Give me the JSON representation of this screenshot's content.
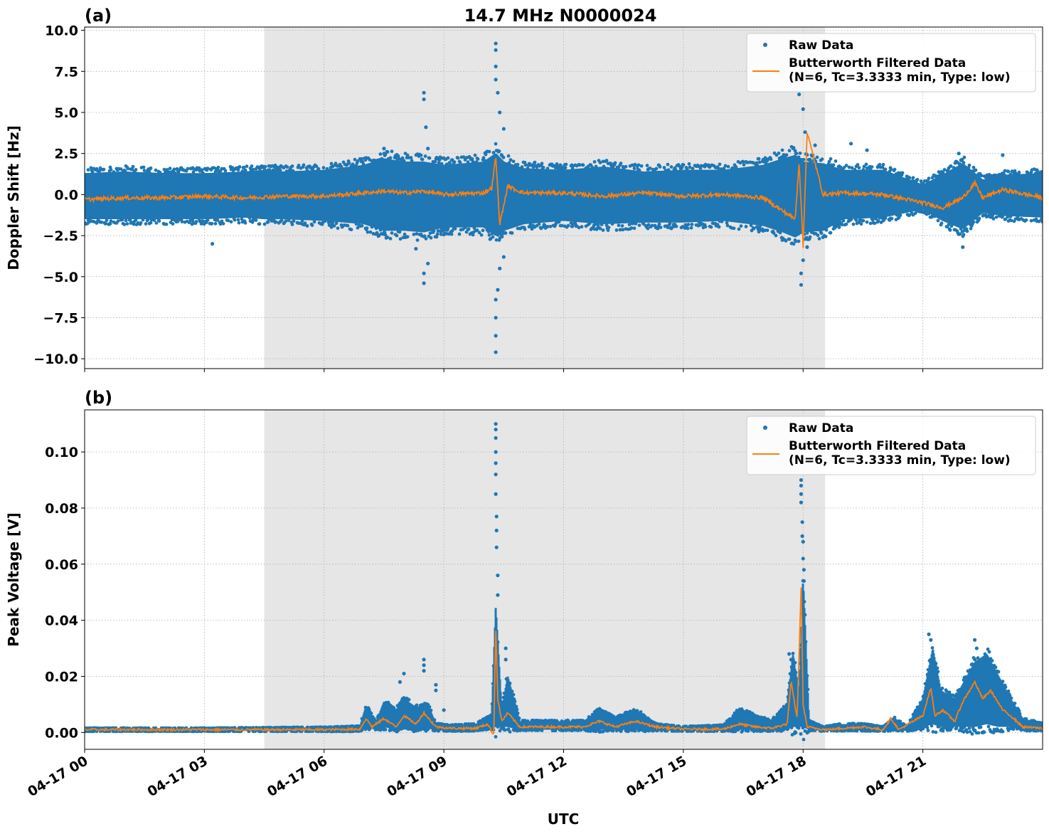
{
  "figure": {
    "title": "14.7 MHz N0000024",
    "xlabel": "UTC"
  },
  "colors": {
    "raw": "#1f77b4",
    "filtered": "#ff7f0e",
    "shade": "#e6e6e6",
    "grid": "#b0b0b0"
  },
  "chart_data": [
    {
      "type": "scatter",
      "panel_label": "(a)",
      "ylabel": "Doppler Shift [Hz]",
      "x_unit": "hours UTC on 04-17",
      "xlim": [
        0,
        24
      ],
      "ylim": [
        -10.6,
        10.2
      ],
      "yticks": [
        10.0,
        7.5,
        5.0,
        2.5,
        0.0,
        -2.5,
        -5.0,
        -7.5,
        -10.0
      ],
      "ytick_labels": [
        "10.0",
        "7.5",
        "5.0",
        "2.5",
        "0.0",
        "−2.5",
        "−5.0",
        "−7.5",
        "−10.0"
      ],
      "shaded_interval": [
        4.5,
        18.55
      ],
      "grid": true,
      "legend_position": "top-right",
      "series": [
        {
          "name": "Raw Data",
          "style": "points",
          "x": [
            0,
            1,
            2,
            3,
            4,
            4.5,
            5,
            6,
            7,
            7.5,
            8,
            8.5,
            9,
            10,
            10.3,
            10.5,
            11,
            12,
            13,
            14,
            15,
            16,
            17,
            17.5,
            17.8,
            18,
            18.5,
            19,
            20,
            21,
            21.5,
            22,
            22.5,
            23,
            24
          ],
          "y_upper": [
            1.3,
            1.4,
            1.3,
            1.3,
            1.4,
            1.5,
            1.4,
            1.5,
            1.8,
            2.2,
            2.0,
            2.0,
            1.8,
            2.0,
            2.5,
            2.0,
            1.6,
            1.5,
            1.7,
            1.4,
            1.5,
            1.5,
            1.8,
            2.2,
            2.4,
            2.0,
            1.9,
            1.5,
            1.5,
            0.6,
            1.2,
            1.9,
            0.9,
            1.2,
            1.3
          ],
          "y_lower": [
            -1.5,
            -1.5,
            -1.5,
            -1.5,
            -1.4,
            -1.5,
            -1.5,
            -1.6,
            -1.8,
            -2.2,
            -2.2,
            -2.3,
            -2.0,
            -2.0,
            -2.5,
            -2.2,
            -1.8,
            -1.6,
            -1.8,
            -1.7,
            -1.7,
            -1.6,
            -1.9,
            -2.3,
            -2.6,
            -2.3,
            -2.2,
            -1.5,
            -1.4,
            -0.9,
            -1.6,
            -2.1,
            -1.1,
            -1.3,
            -1.4
          ],
          "outliers_x": [
            3.2,
            7.5,
            8.5,
            8.5,
            8.5,
            8.5,
            8.55,
            8.6,
            8.6,
            8.3,
            10.3,
            10.3,
            10.3,
            10.3,
            10.3,
            10.3,
            10.3,
            10.3,
            10.35,
            10.35,
            10.4,
            10.4,
            10.5,
            10.5,
            17.9,
            17.9,
            17.95,
            17.95,
            18.0,
            18.0,
            18.05,
            18.1,
            18.3,
            19.2,
            19.6,
            21.9,
            22.0,
            23.0
          ],
          "outliers_y": [
            -3.0,
            2.8,
            6.2,
            5.8,
            -5.4,
            -4.8,
            4.1,
            2.8,
            -4.2,
            -3.3,
            9.2,
            8.8,
            7.8,
            7.0,
            -9.6,
            -8.6,
            -7.5,
            -6.4,
            6.2,
            -5.8,
            5.0,
            -4.5,
            4.0,
            -3.8,
            7.0,
            6.1,
            -5.5,
            -4.8,
            5.2,
            -4.0,
            3.8,
            -3.2,
            3.0,
            3.1,
            2.7,
            2.5,
            -3.2,
            2.4
          ]
        },
        {
          "name": "Butterworth Filtered Data\n(N=6, Tc=3.3333 min, Type: low)",
          "style": "line",
          "x": [
            0,
            1,
            2,
            3,
            4,
            5,
            6,
            7,
            7.5,
            8,
            8.5,
            9,
            10,
            10.2,
            10.3,
            10.4,
            10.6,
            11,
            12,
            13,
            14,
            15,
            16,
            17,
            17.8,
            17.9,
            18.0,
            18.1,
            18.5,
            19,
            20,
            21,
            21.5,
            22,
            22.3,
            22.5,
            23,
            24
          ],
          "y": [
            -0.3,
            -0.2,
            -0.2,
            -0.1,
            -0.2,
            -0.1,
            -0.1,
            0.1,
            0.2,
            0.1,
            0.2,
            0.0,
            0.1,
            0.4,
            2.3,
            -1.8,
            0.5,
            0.1,
            0.1,
            -0.1,
            0.1,
            -0.1,
            0.0,
            -0.2,
            -1.5,
            2.0,
            -3.2,
            3.8,
            0.0,
            0.1,
            0.0,
            -0.5,
            -0.8,
            -0.2,
            0.7,
            -0.2,
            0.3,
            -0.2
          ]
        }
      ]
    },
    {
      "type": "scatter",
      "panel_label": "(b)",
      "ylabel": "Peak Voltage [V]",
      "x_unit": "hours UTC on 04-17",
      "xlim": [
        0,
        24
      ],
      "ylim": [
        -0.006,
        0.115
      ],
      "yticks": [
        0.1,
        0.08,
        0.06,
        0.04,
        0.02,
        0.0
      ],
      "ytick_labels": [
        "0.10",
        "0.08",
        "0.06",
        "0.04",
        "0.02",
        "0.00"
      ],
      "xticks": [
        0,
        3,
        6,
        9,
        12,
        15,
        18,
        21
      ],
      "xtick_labels": [
        "04-17 00",
        "04-17 03",
        "04-17 06",
        "04-17 09",
        "04-17 12",
        "04-17 15",
        "04-17 18",
        "04-17 21"
      ],
      "shaded_interval": [
        4.5,
        18.55
      ],
      "grid": true,
      "legend_position": "top-right",
      "series": [
        {
          "name": "Raw Data",
          "style": "points",
          "x": [
            0,
            3,
            6,
            6.9,
            7.05,
            7.3,
            7.5,
            7.8,
            8.0,
            8.3,
            8.6,
            8.8,
            9.2,
            9.8,
            10.2,
            10.3,
            10.45,
            10.6,
            10.9,
            11.5,
            12.5,
            12.9,
            13.3,
            13.8,
            14.3,
            15,
            16,
            16.4,
            16.8,
            17.2,
            17.6,
            17.75,
            17.9,
            18.0,
            18.15,
            18.5,
            19.0,
            19.5,
            20.0,
            20.3,
            20.6,
            21.0,
            21.25,
            21.45,
            21.8,
            22.3,
            22.6,
            22.9,
            23.2,
            23.5,
            24
          ],
          "y_upper": [
            0.0015,
            0.0015,
            0.0018,
            0.0022,
            0.0095,
            0.0035,
            0.011,
            0.008,
            0.012,
            0.009,
            0.01,
            0.003,
            0.0025,
            0.003,
            0.006,
            0.045,
            0.008,
            0.02,
            0.004,
            0.004,
            0.004,
            0.008,
            0.005,
            0.008,
            0.003,
            0.002,
            0.0025,
            0.008,
            0.006,
            0.004,
            0.01,
            0.028,
            0.012,
            0.055,
            0.004,
            0.002,
            0.003,
            0.003,
            0.002,
            0.005,
            0.002,
            0.012,
            0.03,
            0.015,
            0.012,
            0.025,
            0.028,
            0.02,
            0.012,
            0.005,
            0.003
          ],
          "y_lower": [
            0.0005,
            0.0005,
            0.0005,
            0.0005,
            0.002,
            0.001,
            0.002,
            0.001,
            0.002,
            0.001,
            0.0015,
            0.0008,
            0.0006,
            0.0008,
            0.0015,
            0.002,
            0.002,
            0.002,
            0.001,
            0.001,
            0.001,
            0.001,
            0.001,
            0.001,
            0.0008,
            0.0006,
            0.0006,
            0.001,
            0.001,
            0.0008,
            0.0015,
            0.002,
            0.002,
            0.002,
            0.001,
            0.0006,
            0.0008,
            0.0008,
            0.0006,
            0.001,
            0.0006,
            0.002,
            0.003,
            0.002,
            0.002,
            0.002,
            0.003,
            0.002,
            0.002,
            0.001,
            0.0008
          ],
          "outliers_x": [
            8.0,
            7.9,
            8.5,
            8.5,
            8.5,
            8.8,
            8.8,
            9.0,
            10.3,
            10.3,
            10.3,
            10.3,
            10.3,
            10.3,
            10.3,
            10.32,
            10.32,
            10.32,
            10.35,
            10.35,
            10.55,
            10.55,
            17.65,
            17.7,
            17.95,
            17.95,
            17.95,
            17.95,
            17.98,
            17.98,
            18.0,
            18.0,
            18.02,
            18.02,
            21.15,
            21.2,
            22.3,
            22.35,
            22.6
          ],
          "outliers_y": [
            0.021,
            0.018,
            0.026,
            0.024,
            0.022,
            0.017,
            0.015,
            0.008,
            0.11,
            0.108,
            0.105,
            0.1,
            0.096,
            0.092,
            0.085,
            0.077,
            0.072,
            0.066,
            0.056,
            0.049,
            0.03,
            0.026,
            0.028,
            0.026,
            0.09,
            0.088,
            0.085,
            0.082,
            0.075,
            0.07,
            0.068,
            0.062,
            0.058,
            0.054,
            0.035,
            0.033,
            0.033,
            0.03,
            0.026
          ]
        },
        {
          "name": "Butterworth Filtered Data\n(N=6, Tc=3.3333 min, Type: low)",
          "style": "line",
          "x": [
            0,
            3,
            6,
            6.9,
            7.05,
            7.2,
            7.5,
            7.8,
            8.0,
            8.3,
            8.5,
            8.8,
            9.2,
            9.8,
            10.1,
            10.25,
            10.3,
            10.35,
            10.45,
            10.6,
            10.9,
            11.5,
            12.5,
            12.9,
            13.3,
            13.8,
            14.3,
            15,
            16,
            16.4,
            16.8,
            17.2,
            17.6,
            17.7,
            17.85,
            17.95,
            18.0,
            18.1,
            18.3,
            18.6,
            19.0,
            19.5,
            20.0,
            20.2,
            20.4,
            21.0,
            21.2,
            21.3,
            21.5,
            21.8,
            22.0,
            22.3,
            22.5,
            22.7,
            23.0,
            23.2,
            23.5,
            24
          ],
          "y": [
            0.001,
            0.001,
            0.001,
            0.0012,
            0.005,
            0.002,
            0.005,
            0.002,
            0.006,
            0.003,
            0.007,
            0.002,
            0.0015,
            0.0015,
            0.003,
            -0.001,
            0.038,
            0.012,
            0.004,
            0.007,
            0.002,
            0.002,
            0.002,
            0.004,
            0.002,
            0.004,
            0.002,
            0.0012,
            0.0012,
            0.003,
            0.002,
            0.0015,
            0.003,
            0.018,
            0.005,
            0.052,
            0.01,
            0.002,
            0.0015,
            0.001,
            0.0015,
            0.002,
            0.001,
            0.005,
            0.001,
            0.006,
            0.016,
            0.006,
            0.008,
            0.004,
            0.011,
            0.018,
            0.012,
            0.015,
            0.008,
            0.006,
            0.002,
            0.0015
          ]
        }
      ]
    }
  ]
}
